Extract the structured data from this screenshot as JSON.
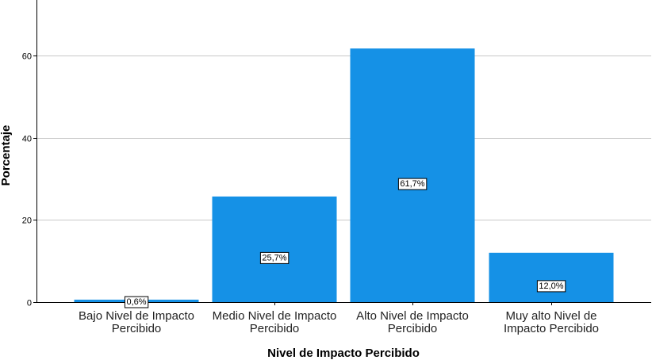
{
  "chart_data": {
    "type": "bar",
    "title": "",
    "xlabel": "Nivel de Impacto Percibido",
    "ylabel": "Porcentaje",
    "categories": [
      "Bajo Nivel de Impacto Percibido",
      "Medio Nivel de Impacto Percibido",
      "Alto Nivel de Impacto Percibido",
      "Muy alto Nivel de Impacto Percibido"
    ],
    "category_label_lines": [
      [
        "Bajo Nivel de Impacto",
        "Percibido"
      ],
      [
        "Medio Nivel de Impacto",
        "Percibido"
      ],
      [
        "Alto Nivel de Impacto",
        "Percibido"
      ],
      [
        "Muy alto Nivel de",
        "Impacto Percibido"
      ]
    ],
    "values": [
      0.6,
      25.7,
      61.7,
      12.0
    ],
    "data_labels": [
      "0,6%",
      "25,7%",
      "61,7%",
      "12,0%"
    ],
    "yticks": [
      0,
      20,
      40,
      60
    ],
    "ylim": [
      0,
      73.5
    ],
    "grid": true,
    "bar_color": "#1591e6"
  }
}
